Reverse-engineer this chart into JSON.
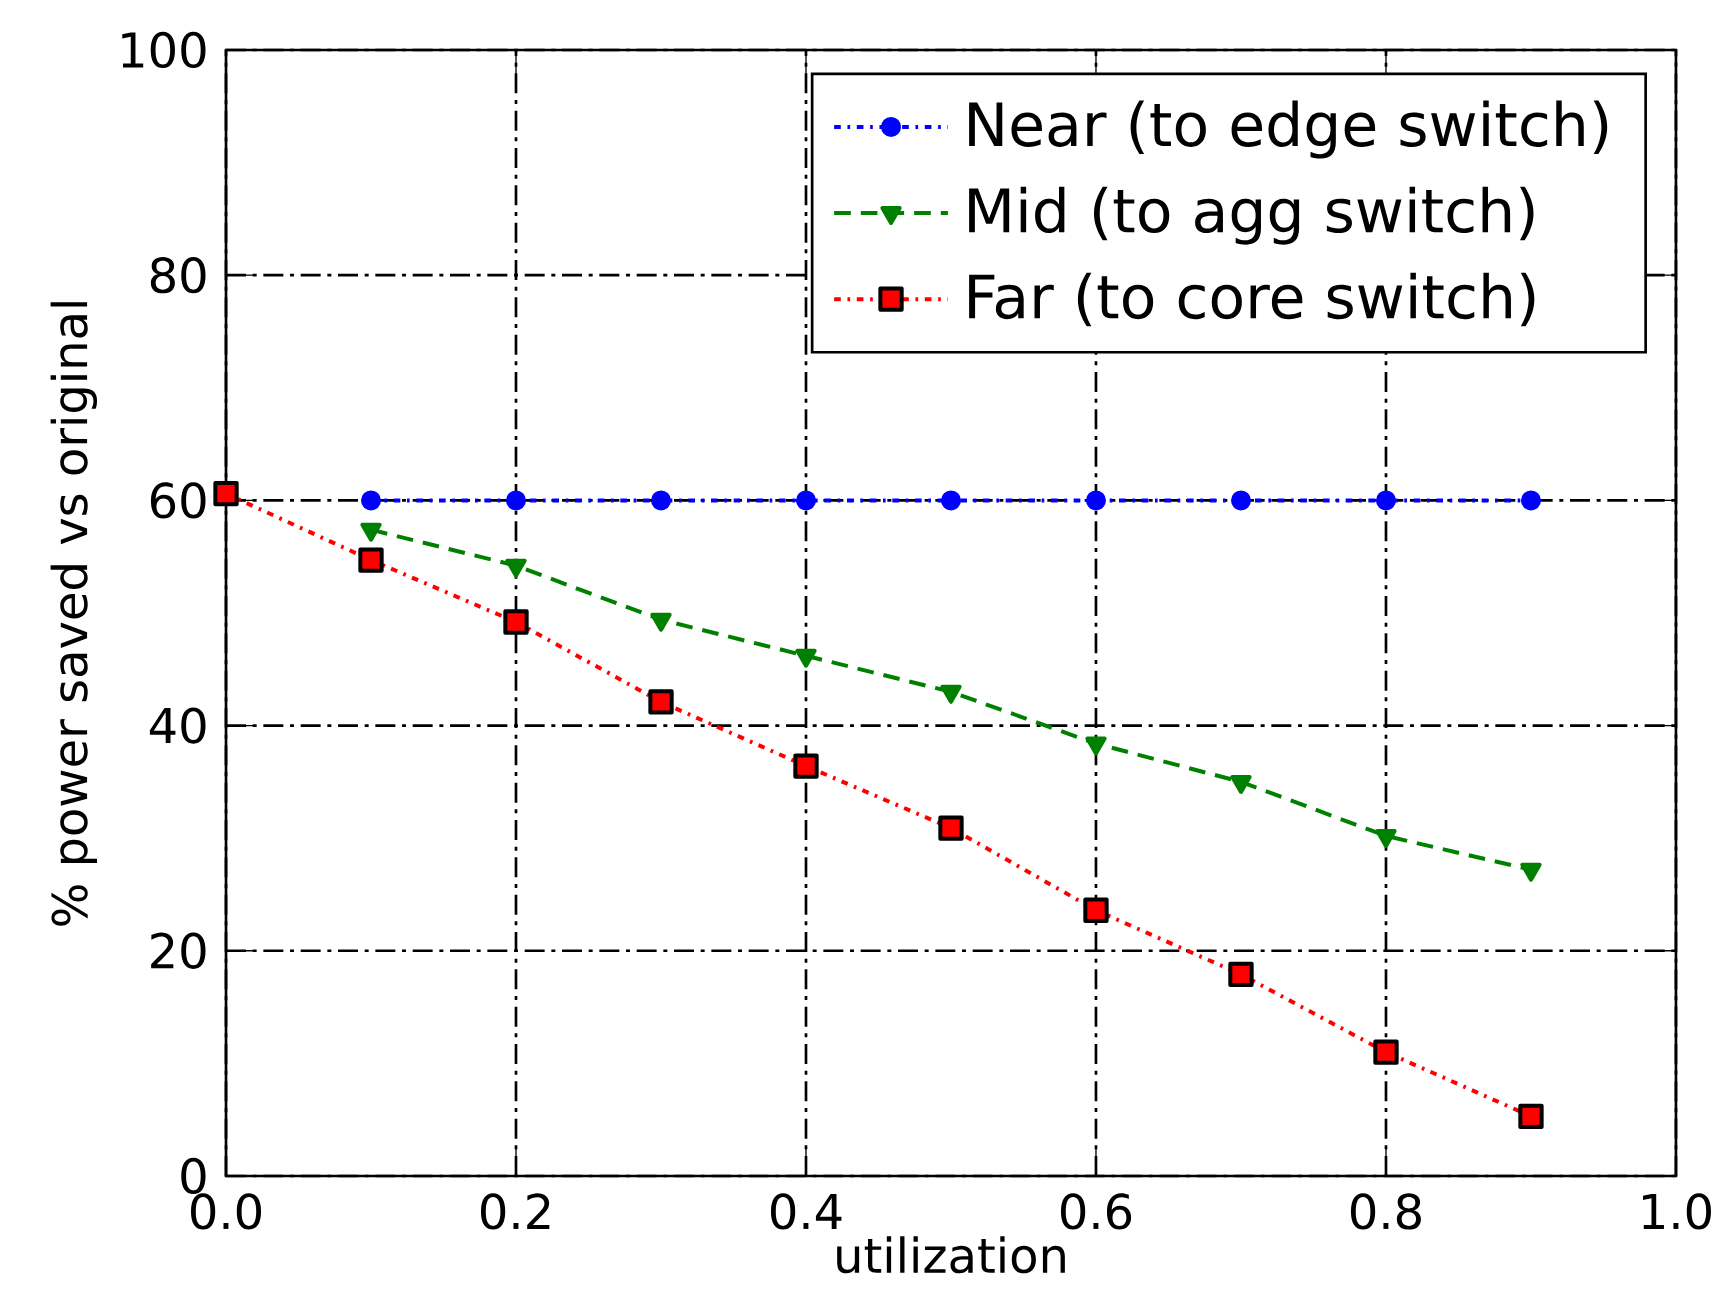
{
  "chart_data": {
    "type": "line",
    "xlabel": "utilization",
    "ylabel": "% power saved vs original",
    "x": [
      0.0,
      0.1,
      0.2,
      0.3,
      0.4,
      0.5,
      0.6,
      0.7,
      0.8,
      0.9
    ],
    "series": [
      {
        "name": "Near (to edge switch)",
        "color": "#0000ff",
        "marker": "circle",
        "line_style": "dotted",
        "values": [
          null,
          60,
          60,
          60,
          60,
          60,
          60,
          60,
          60,
          60
        ]
      },
      {
        "name": "Mid (to agg switch)",
        "color": "#008000",
        "marker": "triangle",
        "line_style": "dashed",
        "values": [
          null,
          57.4,
          54.2,
          49.4,
          46.2,
          43,
          38.4,
          35,
          30.2,
          27.2
        ]
      },
      {
        "name": "Far (to core switch)",
        "color": "#ff0000",
        "marker": "square",
        "line_style": "dotted",
        "values": [
          60.6,
          54.7,
          49.2,
          42.1,
          36.4,
          30.9,
          23.6,
          17.9,
          11,
          5.3
        ]
      }
    ],
    "xlim": [
      0,
      1
    ],
    "ylim": [
      0,
      100
    ],
    "xticks": [
      {
        "value": 0,
        "label": "0.0"
      },
      {
        "value": 0.2,
        "label": "0.2"
      },
      {
        "value": 0.4,
        "label": "0.4"
      },
      {
        "value": 0.6,
        "label": "0.6"
      },
      {
        "value": 0.8,
        "label": "0.8"
      },
      {
        "value": 1,
        "label": "1.0"
      }
    ],
    "yticks": [
      0,
      20,
      40,
      60,
      80,
      100
    ],
    "grid": true,
    "legend": "top right"
  }
}
